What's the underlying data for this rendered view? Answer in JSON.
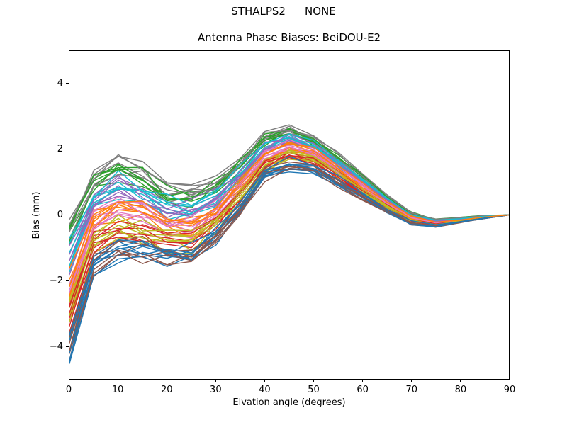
{
  "figure": {
    "suptitle_left": "STHALPS2",
    "suptitle_right": "NONE",
    "axes_title": "Antenna Phase Biases: BeiDOU-E2",
    "xlabel": "Elvation angle (degrees)",
    "ylabel": "Bias (mm)",
    "background_color": "#ffffff",
    "spine_color": "#000000"
  },
  "chart_data": {
    "type": "line",
    "title": "Antenna Phase Biases: BeiDOU-E2",
    "suptitle": "STHALPS2        NONE",
    "xlabel": "Elvation angle (degrees)",
    "ylabel": "Bias (mm)",
    "xlim": [
      0,
      90
    ],
    "ylim": [
      -5,
      5
    ],
    "x_ticks": [
      0,
      10,
      20,
      30,
      40,
      50,
      60,
      70,
      80,
      90
    ],
    "x_tick_labels": [
      "0",
      "10",
      "20",
      "30",
      "40",
      "50",
      "60",
      "70",
      "80",
      "90"
    ],
    "y_ticks": [
      -4,
      -2,
      0,
      2,
      4
    ],
    "y_tick_labels": [
      "−4",
      "−2",
      "0",
      "2",
      "4"
    ],
    "grid": false,
    "legend": false,
    "x": [
      0,
      5,
      10,
      15,
      20,
      25,
      30,
      35,
      40,
      45,
      50,
      55,
      60,
      65,
      70,
      75,
      80,
      85,
      90
    ],
    "series_count": 72,
    "band_center": [
      -2.25,
      -0.22,
      0.22,
      0.05,
      -0.33,
      -0.33,
      0.12,
      0.9,
      1.75,
      2.06,
      1.87,
      1.38,
      0.85,
      0.35,
      -0.1,
      -0.25,
      -0.16,
      -0.06,
      0
    ],
    "band_halfwidth": [
      2.45,
      1.8,
      1.72,
      1.6,
      1.3,
      1.25,
      1.05,
      0.9,
      0.78,
      0.72,
      0.58,
      0.52,
      0.42,
      0.28,
      0.22,
      0.13,
      0.09,
      0.05,
      0
    ],
    "jitter": [
      0.5,
      0.5,
      0.5,
      0.55,
      0.55,
      0.5,
      0.45,
      0.35,
      0.3,
      0.28,
      0.22,
      0.2,
      0.15,
      0.1,
      0.08,
      0.06,
      0.04,
      0.02,
      0
    ],
    "colors": [
      "#1f77b4",
      "#ff7f0e",
      "#2ca02c",
      "#d62728",
      "#9467bd",
      "#8c564b",
      "#e377c2",
      "#7f7f7f",
      "#bcbd22",
      "#17becf"
    ],
    "line_width": 1.4,
    "seed": 987654321
  },
  "layout_note": "all lines converge to 0.0 mm at 90 degrees"
}
